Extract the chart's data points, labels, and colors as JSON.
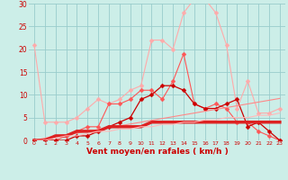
{
  "x": [
    0,
    1,
    2,
    3,
    4,
    5,
    6,
    7,
    8,
    9,
    10,
    11,
    12,
    13,
    14,
    15,
    16,
    17,
    18,
    19,
    20,
    21,
    22,
    23
  ],
  "series": [
    {
      "label": "s_light_pink",
      "color": "#ffaaaa",
      "linewidth": 0.8,
      "markersize": 2.5,
      "marker": "D",
      "y": [
        21,
        4,
        4,
        4,
        5,
        7,
        9,
        8,
        9,
        11,
        12,
        22,
        22,
        20,
        28,
        31,
        31,
        28,
        21,
        7,
        13,
        6,
        6,
        7
      ]
    },
    {
      "label": "s_med_red",
      "color": "#ff5555",
      "linewidth": 0.8,
      "markersize": 2.5,
      "marker": "D",
      "y": [
        0,
        0,
        0,
        1,
        2,
        3,
        3,
        8,
        8,
        9,
        11,
        11,
        9,
        13,
        19,
        8,
        7,
        8,
        7,
        4,
        4,
        2,
        1,
        0
      ]
    },
    {
      "label": "s_dark_red_markers",
      "color": "#cc0000",
      "linewidth": 0.9,
      "markersize": 2.5,
      "marker": "D",
      "y": [
        0,
        0,
        0,
        0,
        1,
        1,
        2,
        3,
        4,
        5,
        9,
        10,
        12,
        12,
        11,
        8,
        7,
        7,
        8,
        9,
        3,
        4,
        2,
        0
      ]
    },
    {
      "label": "s_linear",
      "color": "#ff8888",
      "linewidth": 0.8,
      "markersize": 0,
      "marker": null,
      "y": [
        0,
        0.5,
        1,
        1.3,
        1.6,
        2,
        2.4,
        2.8,
        3.2,
        3.6,
        4.0,
        4.4,
        4.8,
        5.2,
        5.6,
        6.0,
        6.4,
        6.8,
        7.2,
        7.6,
        8.0,
        8.4,
        8.8,
        9.2
      ]
    },
    {
      "label": "s_thick_flat",
      "color": "#dd2222",
      "linewidth": 2.5,
      "markersize": 0,
      "marker": null,
      "y": [
        0,
        0,
        1,
        1,
        2,
        2,
        2,
        3,
        3,
        3,
        3,
        4,
        4,
        4,
        4,
        4,
        4,
        4,
        4,
        4,
        4,
        4,
        4,
        4
      ]
    },
    {
      "label": "s_pink_flat",
      "color": "#ffbbbb",
      "linewidth": 0.8,
      "markersize": 0,
      "marker": null,
      "y": [
        0,
        0,
        0.5,
        1,
        1,
        1.5,
        2,
        2,
        2.5,
        2.5,
        3,
        3,
        3.5,
        3.5,
        4,
        4,
        4.5,
        4.5,
        5,
        5,
        5,
        5.5,
        5.5,
        6
      ]
    }
  ],
  "xlabel": "Vent moyen/en rafales ( km/h )",
  "xlim": [
    -0.5,
    23.5
  ],
  "ylim": [
    0,
    30
  ],
  "yticks": [
    0,
    5,
    10,
    15,
    20,
    25,
    30
  ],
  "xticks": [
    0,
    1,
    2,
    3,
    4,
    5,
    6,
    7,
    8,
    9,
    10,
    11,
    12,
    13,
    14,
    15,
    16,
    17,
    18,
    19,
    20,
    21,
    22,
    23
  ],
  "bg_color": "#cceee8",
  "grid_color": "#99cccc",
  "tick_color": "#cc0000",
  "label_color": "#cc0000"
}
